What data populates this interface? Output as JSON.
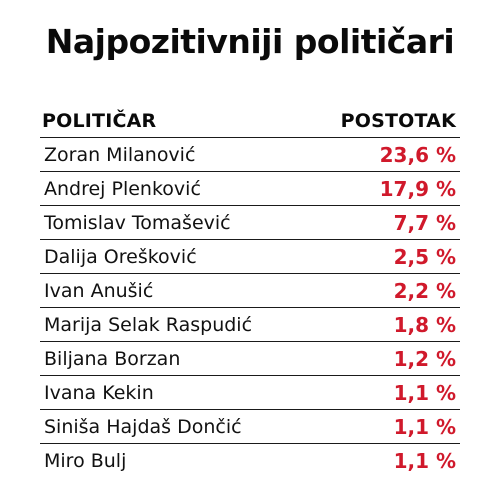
{
  "title": "Najpozitivniji političari",
  "colors": {
    "text": "#0a0a0a",
    "value": "#d0192b",
    "rule": "#1a1a1a",
    "background": "#ffffff"
  },
  "chart_data": {
    "type": "table",
    "title": "Najpozitivniji političari",
    "columns": [
      "POLITIČAR",
      "POSTOTAK"
    ],
    "rows": [
      {
        "name": "Zoran Milanović",
        "value": 23.6,
        "label": "23,6 %"
      },
      {
        "name": "Andrej Plenković",
        "value": 17.9,
        "label": "17,9 %"
      },
      {
        "name": "Tomislav Tomašević",
        "value": 7.7,
        "label": "7,7 %"
      },
      {
        "name": "Dalija Orešković",
        "value": 2.5,
        "label": "2,5 %"
      },
      {
        "name": "Ivan Anušić",
        "value": 2.2,
        "label": "2,2 %"
      },
      {
        "name": "Marija Selak Raspudić",
        "value": 1.8,
        "label": "1,8 %"
      },
      {
        "name": "Biljana Borzan",
        "value": 1.2,
        "label": "1,2 %"
      },
      {
        "name": "Ivana Kekin",
        "value": 1.1,
        "label": "1,1 %"
      },
      {
        "name": "Siniša Hajdaš Dončić",
        "value": 1.1,
        "label": "1,1 %"
      },
      {
        "name": "Miro Bulj",
        "value": 1.1,
        "label": "1,1 %"
      }
    ]
  }
}
